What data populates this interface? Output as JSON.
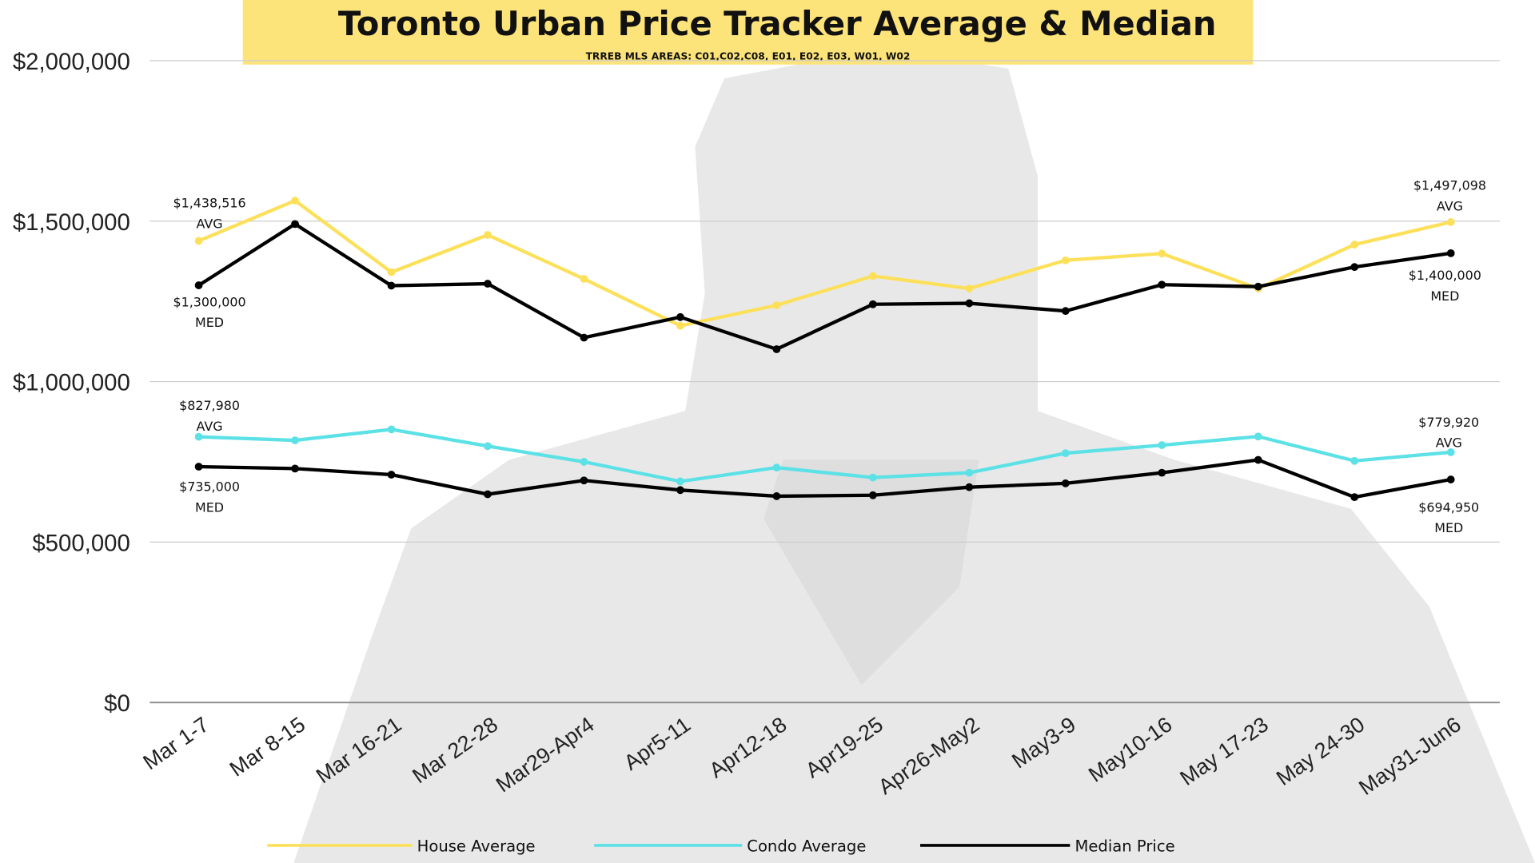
{
  "chart_data": {
    "type": "line",
    "title": "Toronto Urban Price Tracker Average & Median",
    "subtitle": "TRREB MLS AREAS: C01,C02,C08, E01, E02, E03, W01, W02",
    "xlabel": "",
    "ylabel": "",
    "ylim": [
      0,
      2000000
    ],
    "y_ticks": [
      "$0",
      "$500,000",
      "$1,000,000",
      "$1,500,000",
      "$2,000,000"
    ],
    "grid": true,
    "legend_placement": "bottom",
    "categories": [
      "Mar 1-7",
      "Mar 8-15",
      "Mar 16-21",
      "Mar 22-28",
      "Mar29-Apr4",
      "Apr5-11",
      "Apr12-18",
      "Apr19-25",
      "Apr26-May2",
      "May3-9",
      "May10-16",
      "May 17-23",
      "May 24-30",
      "May31-Jun6"
    ],
    "series": [
      {
        "name": "House Average",
        "color": "#fde05a",
        "values": [
          1438516,
          1564000,
          1341000,
          1457000,
          1320000,
          1174000,
          1238000,
          1329000,
          1290000,
          1378000,
          1399000,
          1290000,
          1427000,
          1497098
        ]
      },
      {
        "name": "Median Price",
        "color": "#000000",
        "values": [
          1300000,
          1491000,
          1299000,
          1305000,
          1137000,
          1201000,
          1101000,
          1241000,
          1244000,
          1220000,
          1302000,
          1296000,
          1357000,
          1400000
        ]
      },
      {
        "name": "Condo Average",
        "color": "#5ce1e6",
        "values": [
          827980,
          817000,
          851000,
          799000,
          750000,
          689000,
          732000,
          701000,
          716000,
          777000,
          802000,
          829000,
          753000,
          779920
        ]
      },
      {
        "name": "Median Price",
        "color": "#000000",
        "values": [
          735000,
          729000,
          710000,
          649000,
          692000,
          662000,
          643000,
          646000,
          671000,
          683000,
          716000,
          756000,
          640000,
          694950
        ]
      }
    ],
    "legend": [
      "House Average",
      "Condo Average",
      "Median Price"
    ],
    "annotations": [
      {
        "value": "$1,438,516",
        "tag": "AVG"
      },
      {
        "value": "$1,300,000",
        "tag": "MED"
      },
      {
        "value": "$827,980",
        "tag": "AVG"
      },
      {
        "value": "$735,000",
        "tag": "MED"
      },
      {
        "value": "$1,497,098",
        "tag": "AVG"
      },
      {
        "value": "$1,400,000",
        "tag": "MED"
      },
      {
        "value": "$779,920",
        "tag": "AVG"
      },
      {
        "value": "$694,950",
        "tag": "MED"
      }
    ],
    "banner_color": "#fde47a"
  }
}
